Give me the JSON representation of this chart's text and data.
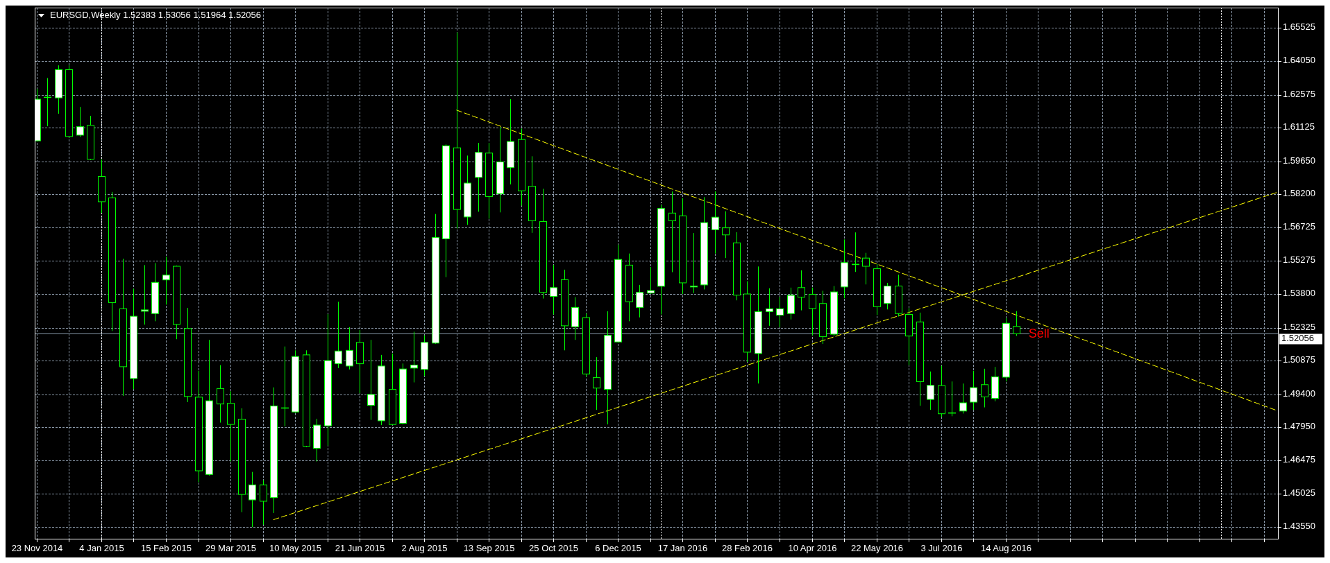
{
  "chart_data": {
    "type": "candlestick",
    "title": "EURSGD,Weekly 1.52383 1.53056 1.51964 1.52056",
    "color": "#00ff00",
    "x": [
      "2014-11-23",
      "2014-11-30",
      "2014-12-07",
      "2014-12-14",
      "2014-12-21",
      "2014-12-28",
      "2015-01-04",
      "2015-01-11",
      "2015-01-18",
      "2015-01-25",
      "2015-02-01",
      "2015-02-08",
      "2015-02-15",
      "2015-02-22",
      "2015-03-01",
      "2015-03-08",
      "2015-03-15",
      "2015-03-22",
      "2015-03-29",
      "2015-04-05",
      "2015-04-12",
      "2015-04-19",
      "2015-04-26",
      "2015-05-03",
      "2015-05-10",
      "2015-05-17",
      "2015-05-24",
      "2015-05-31",
      "2015-06-07",
      "2015-06-14",
      "2015-06-21",
      "2015-06-28",
      "2015-07-05",
      "2015-07-12",
      "2015-07-19",
      "2015-07-26",
      "2015-08-02",
      "2015-08-09",
      "2015-08-16",
      "2015-08-23",
      "2015-08-30",
      "2015-09-06",
      "2015-09-13",
      "2015-09-20",
      "2015-09-27",
      "2015-10-04",
      "2015-10-11",
      "2015-10-18",
      "2015-10-25",
      "2015-11-01",
      "2015-11-08",
      "2015-11-15",
      "2015-11-22",
      "2015-11-29",
      "2015-12-06",
      "2015-12-13",
      "2015-12-20",
      "2015-12-27",
      "2016-01-03",
      "2016-01-10",
      "2016-01-17",
      "2016-01-24",
      "2016-01-31",
      "2016-02-07",
      "2016-02-14",
      "2016-02-21",
      "2016-02-28",
      "2016-03-06",
      "2016-03-13",
      "2016-03-20",
      "2016-03-27",
      "2016-04-03",
      "2016-04-10",
      "2016-04-17",
      "2016-04-24",
      "2016-05-01",
      "2016-05-08",
      "2016-05-15",
      "2016-05-22",
      "2016-05-29",
      "2016-06-05",
      "2016-06-12",
      "2016-06-19",
      "2016-06-26",
      "2016-07-03",
      "2016-07-10",
      "2016-07-17",
      "2016-07-24",
      "2016-07-31",
      "2016-08-07",
      "2016-08-14",
      "2016-08-21"
    ],
    "ohlc": [
      [
        1.6055,
        1.6284,
        1.6052,
        1.6238
      ],
      [
        1.6247,
        1.6331,
        1.6119,
        1.6247
      ],
      [
        1.6244,
        1.6387,
        1.6174,
        1.6368
      ],
      [
        1.6368,
        1.6388,
        1.6071,
        1.6074
      ],
      [
        1.608,
        1.6204,
        1.6072,
        1.6117
      ],
      [
        1.6123,
        1.6165,
        1.597,
        1.5974
      ],
      [
        1.5898,
        1.5973,
        1.5737,
        1.5787
      ],
      [
        1.5804,
        1.583,
        1.5218,
        1.5343
      ],
      [
        1.5316,
        1.5536,
        1.4933,
        1.5061
      ],
      [
        1.5009,
        1.5404,
        1.4962,
        1.5283
      ],
      [
        1.5305,
        1.5508,
        1.5246,
        1.5311
      ],
      [
        1.5295,
        1.5517,
        1.5261,
        1.5432
      ],
      [
        1.5443,
        1.5545,
        1.5334,
        1.5464
      ],
      [
        1.5503,
        1.5506,
        1.5182,
        1.5247
      ],
      [
        1.5229,
        1.532,
        1.4905,
        1.493
      ],
      [
        1.4927,
        1.5043,
        1.4553,
        1.4603
      ],
      [
        1.4587,
        1.5179,
        1.4582,
        1.4911
      ],
      [
        1.4965,
        1.5068,
        1.4815,
        1.4897
      ],
      [
        1.49,
        1.4953,
        1.4644,
        1.4807
      ],
      [
        1.483,
        1.4878,
        1.4421,
        1.4499
      ],
      [
        1.4475,
        1.4598,
        1.4355,
        1.4541
      ],
      [
        1.4541,
        1.4562,
        1.4366,
        1.4469
      ],
      [
        1.4485,
        1.497,
        1.4417,
        1.4888
      ],
      [
        1.488,
        1.515,
        1.4799,
        1.488
      ],
      [
        1.4862,
        1.5133,
        1.4858,
        1.5106
      ],
      [
        1.5113,
        1.5133,
        1.4707,
        1.4711
      ],
      [
        1.4702,
        1.4832,
        1.4644,
        1.4804
      ],
      [
        1.4801,
        1.5292,
        1.4714,
        1.5088
      ],
      [
        1.5074,
        1.5347,
        1.5055,
        1.513
      ],
      [
        1.5064,
        1.5235,
        1.5049,
        1.5133
      ],
      [
        1.5168,
        1.5223,
        1.4944,
        1.5074
      ],
      [
        1.4891,
        1.5179,
        1.4827,
        1.4939
      ],
      [
        1.4823,
        1.5113,
        1.4804,
        1.5064
      ],
      [
        1.4961,
        1.5119,
        1.4804,
        1.4807
      ],
      [
        1.4812,
        1.5075,
        1.4807,
        1.5051
      ],
      [
        1.5055,
        1.5215,
        1.4992,
        1.5068
      ],
      [
        1.5049,
        1.5199,
        1.502,
        1.5168
      ],
      [
        1.5165,
        1.5733,
        1.5162,
        1.563
      ],
      [
        1.5624,
        1.6039,
        1.5455,
        1.6033
      ],
      [
        1.6024,
        1.6532,
        1.5669,
        1.5753
      ],
      [
        1.572,
        1.599,
        1.5685,
        1.5869
      ],
      [
        1.5894,
        1.6046,
        1.5743,
        1.6004
      ],
      [
        1.6001,
        1.6046,
        1.5712,
        1.581
      ],
      [
        1.5822,
        1.6115,
        1.574,
        1.5962
      ],
      [
        1.5937,
        1.6238,
        1.5863,
        1.6052
      ],
      [
        1.6061,
        1.6109,
        1.577,
        1.5835
      ],
      [
        1.5855,
        1.5987,
        1.565,
        1.5703
      ],
      [
        1.57,
        1.5844,
        1.5361,
        1.5388
      ],
      [
        1.537,
        1.5509,
        1.5291,
        1.5409
      ],
      [
        1.5444,
        1.5488,
        1.5133,
        1.5241
      ],
      [
        1.5237,
        1.5367,
        1.5179,
        1.5322
      ],
      [
        1.5277,
        1.5295,
        1.5017,
        1.5029
      ],
      [
        1.5013,
        1.5103,
        1.4871,
        1.4967
      ],
      [
        1.4961,
        1.5305,
        1.4807,
        1.5199
      ],
      [
        1.517,
        1.5598,
        1.5167,
        1.5533
      ],
      [
        1.5508,
        1.5559,
        1.5261,
        1.5347
      ],
      [
        1.5322,
        1.5421,
        1.5278,
        1.5388
      ],
      [
        1.5385,
        1.55,
        1.5382,
        1.5396
      ],
      [
        1.5415,
        1.5773,
        1.5291,
        1.5757
      ],
      [
        1.5737,
        1.5832,
        1.5477,
        1.5703
      ],
      [
        1.5725,
        1.5802,
        1.5381,
        1.543
      ],
      [
        1.5412,
        1.5649,
        1.5385,
        1.5416
      ],
      [
        1.5421,
        1.5807,
        1.5401,
        1.5695
      ],
      [
        1.5664,
        1.5832,
        1.5559,
        1.5719
      ],
      [
        1.5672,
        1.5745,
        1.5539,
        1.5641
      ],
      [
        1.5606,
        1.5653,
        1.5353,
        1.5376
      ],
      [
        1.5381,
        1.5437,
        1.5082,
        1.5125
      ],
      [
        1.5119,
        1.5502,
        1.4987,
        1.5303
      ],
      [
        1.5303,
        1.5406,
        1.5241,
        1.5316
      ],
      [
        1.5288,
        1.5368,
        1.5235,
        1.5316
      ],
      [
        1.5295,
        1.5409,
        1.5269,
        1.5375
      ],
      [
        1.5409,
        1.5485,
        1.5309,
        1.5367
      ],
      [
        1.5379,
        1.5409,
        1.5199,
        1.5317
      ],
      [
        1.5339,
        1.5395,
        1.5161,
        1.5193
      ],
      [
        1.5204,
        1.5416,
        1.5196,
        1.539
      ],
      [
        1.5412,
        1.5621,
        1.5362,
        1.5519
      ],
      [
        1.551,
        1.5652,
        1.5478,
        1.5512
      ],
      [
        1.5539,
        1.5562,
        1.5423,
        1.5503
      ],
      [
        1.5492,
        1.5512,
        1.5288,
        1.5325
      ],
      [
        1.5339,
        1.543,
        1.5313,
        1.5416
      ],
      [
        1.5416,
        1.5466,
        1.5282,
        1.5295
      ],
      [
        1.5291,
        1.5319,
        1.5068,
        1.5196
      ],
      [
        1.5258,
        1.5299,
        1.4889,
        1.4995
      ],
      [
        1.4917,
        1.504,
        1.4871,
        1.4979
      ],
      [
        1.4978,
        1.5065,
        1.484,
        1.4854
      ],
      [
        1.4858,
        1.4996,
        1.4843,
        1.4858
      ],
      [
        1.4866,
        1.4987,
        1.4855,
        1.4902
      ],
      [
        1.4905,
        1.5043,
        1.4871,
        1.4969
      ],
      [
        1.4982,
        1.5052,
        1.4882,
        1.4928
      ],
      [
        1.4922,
        1.506,
        1.4909,
        1.5016
      ],
      [
        1.5015,
        1.5275,
        1.4996,
        1.5252
      ],
      [
        1.52383,
        1.53056,
        1.51964,
        1.52056
      ]
    ],
    "series": [
      {
        "type": "line",
        "x": [
          "2015-08-23",
          "2017-02-06"
        ],
        "values": [
          1.619,
          1.4869
        ],
        "color": "#ffff00",
        "line_style": "dashed"
      },
      {
        "type": "line",
        "x": [
          "2015-04-26",
          "2017-02-06"
        ],
        "values": [
          1.4388,
          1.5827
        ],
        "color": "#ffff00",
        "line_style": "dashed"
      }
    ],
    "xlim": [
      "2014-11-21T17:00",
      "2017-02-07T12:00"
    ],
    "xticks": [
      {
        "value": "2014-11-23",
        "label": "23 Nov 2014"
      },
      {
        "value": "2014-12-14",
        "label": null
      },
      {
        "value": "2015-01-04",
        "label": "4 Jan 2015"
      },
      {
        "value": "2015-01-25",
        "label": null
      },
      {
        "value": "2015-02-15",
        "label": "15 Feb 2015"
      },
      {
        "value": "2015-03-08",
        "label": null
      },
      {
        "value": "2015-03-29",
        "label": "29 Mar 2015"
      },
      {
        "value": "2015-04-19",
        "label": null
      },
      {
        "value": "2015-05-10",
        "label": "10 May 2015"
      },
      {
        "value": "2015-05-31",
        "label": null
      },
      {
        "value": "2015-06-21",
        "label": "21 Jun 2015"
      },
      {
        "value": "2015-07-12",
        "label": null
      },
      {
        "value": "2015-08-02",
        "label": "2 Aug 2015"
      },
      {
        "value": "2015-08-23",
        "label": null
      },
      {
        "value": "2015-09-13",
        "label": "13 Sep 2015"
      },
      {
        "value": "2015-10-04",
        "label": null
      },
      {
        "value": "2015-10-25",
        "label": "25 Oct 2015"
      },
      {
        "value": "2015-11-15",
        "label": null
      },
      {
        "value": "2015-12-06",
        "label": "6 Dec 2015"
      },
      {
        "value": "2015-12-27",
        "label": null
      },
      {
        "value": "2016-01-17",
        "label": "17 Jan 2016"
      },
      {
        "value": "2016-02-07",
        "label": null
      },
      {
        "value": "2016-02-28",
        "label": "28 Feb 2016"
      },
      {
        "value": "2016-03-20",
        "label": null
      },
      {
        "value": "2016-04-10",
        "label": "10 Apr 2016"
      },
      {
        "value": "2016-05-01",
        "label": null
      },
      {
        "value": "2016-05-22",
        "label": "22 May 2016"
      },
      {
        "value": "2016-06-12",
        "label": null
      },
      {
        "value": "2016-07-03",
        "label": "3 Jul 2016"
      },
      {
        "value": "2016-07-24",
        "label": null
      },
      {
        "value": "2016-08-14",
        "label": "14 Aug 2016"
      },
      {
        "value": "2016-09-04",
        "label": null
      },
      {
        "value": "2016-09-25",
        "label": null
      },
      {
        "value": "2016-10-16",
        "label": null
      },
      {
        "value": "2016-11-06",
        "label": null
      },
      {
        "value": "2016-11-27",
        "label": null
      },
      {
        "value": "2016-12-18",
        "label": null
      },
      {
        "value": "2017-01-08",
        "label": null
      },
      {
        "value": "2017-01-29",
        "label": null
      }
    ],
    "ylim": [
      1.4301,
      1.6641
    ],
    "yticks": [
      {
        "value": 1.4355,
        "label": "1.43550"
      },
      1.45025,
      1.46475,
      {
        "value": 1.4795,
        "label": "1.47950"
      },
      {
        "value": 1.494,
        "label": "1.49400"
      },
      1.50875,
      1.52325,
      {
        "value": 1.538,
        "label": "1.53800"
      },
      1.55275,
      1.56725,
      {
        "value": 1.582,
        "label": "1.58200"
      },
      {
        "value": 1.5965,
        "label": "1.59650"
      },
      1.61125,
      1.62575,
      {
        "value": 1.6405,
        "label": "1.64050"
      },
      1.65525
    ],
    "grid": true,
    "ref_lines": [
      {
        "axis": "y",
        "value": 1.52056,
        "label": "1.52056",
        "color": "#8899aa"
      },
      {
        "axis": "x",
        "value": "2015-01-04",
        "color": "#ffffff",
        "line_style": "dotted"
      },
      {
        "axis": "x",
        "value": "2016-01-03",
        "color": "#ffffff",
        "line_style": "dotted"
      },
      {
        "axis": "x",
        "value": "2017-01-01",
        "color": "#ffffff",
        "line_style": "dotted"
      }
    ],
    "annotations": [
      {
        "text": "Sell",
        "x": "2016-08-28",
        "y": 1.5204
      }
    ]
  }
}
